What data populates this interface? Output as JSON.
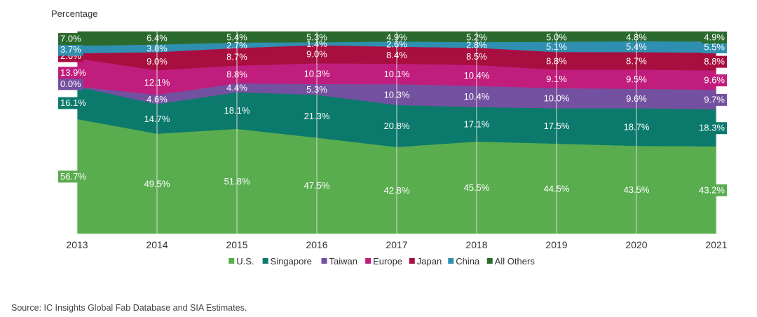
{
  "chart_data": {
    "type": "area",
    "stacked": true,
    "percent": true,
    "ylabel": "Percentage",
    "categories": [
      "2013",
      "2014",
      "2015",
      "2016",
      "2017",
      "2018",
      "2019",
      "2020",
      "2021"
    ],
    "series": [
      {
        "name": "U.S.",
        "color": "#5aad4f",
        "values": [
          56.7,
          49.5,
          51.8,
          47.5,
          42.8,
          45.5,
          44.5,
          43.5,
          43.2
        ],
        "labels": [
          "56.7%",
          "49.5%",
          "51.8%",
          "47.5%",
          "42.8%",
          "45.5%",
          "44.5%",
          "43.5%",
          "43.2%"
        ]
      },
      {
        "name": "Singapore",
        "color": "#0b7a6c",
        "values": [
          16.1,
          14.7,
          18.1,
          21.3,
          20.8,
          17.1,
          17.5,
          18.7,
          18.3
        ],
        "labels": [
          "16.1%",
          "14.7%",
          "18.1%",
          "21.3%",
          "20.8%",
          "17.1%",
          "17.5%",
          "18.7%",
          "18.3%"
        ]
      },
      {
        "name": "Taiwan",
        "color": "#7450a0",
        "values": [
          0.0,
          4.6,
          4.4,
          5.3,
          10.3,
          10.4,
          10.0,
          9.6,
          9.7
        ],
        "labels": [
          "0.0%",
          "4.6%",
          "4.4%",
          "5.3%",
          "10.3%",
          "10.4%",
          "10.0%",
          "9.6%",
          "9.7%"
        ]
      },
      {
        "name": "Europe",
        "color": "#c11d7d",
        "values": [
          13.9,
          12.1,
          8.8,
          10.3,
          10.1,
          10.4,
          9.1,
          9.5,
          9.6
        ],
        "labels": [
          "13.9%",
          "12.1%",
          "8.8%",
          "10.3%",
          "10.1%",
          "10.4%",
          "9.1%",
          "9.5%",
          "9.6%"
        ]
      },
      {
        "name": "Japan",
        "color": "#a80e3f",
        "values": [
          2.6,
          9.0,
          8.7,
          9.0,
          8.4,
          8.5,
          8.8,
          8.7,
          8.8
        ],
        "labels": [
          "2.6%",
          "9.0%",
          "8.7%",
          "9.0%",
          "8.4%",
          "8.5%",
          "8.8%",
          "8.7%",
          "8.8%"
        ]
      },
      {
        "name": "China",
        "color": "#2f8fb0",
        "values": [
          3.7,
          3.8,
          2.7,
          1.4,
          2.6,
          2.8,
          5.1,
          5.4,
          5.5
        ],
        "labels": [
          "3.7%",
          "3.8%",
          "2.7%",
          "1.4%",
          "2.6%",
          "2.8%",
          "5.1%",
          "5.4%",
          "5.5%"
        ]
      },
      {
        "name": "All Others",
        "color": "#2b6a2e",
        "values": [
          7.0,
          6.4,
          5.4,
          5.3,
          4.9,
          5.2,
          5.0,
          4.8,
          4.9
        ],
        "labels": [
          "7.0%",
          "6.4%",
          "5.4%",
          "5.3%",
          "4.9%",
          "5.2%",
          "5.0%",
          "4.8%",
          "4.9%"
        ]
      }
    ],
    "legend_position": "bottom-center",
    "source": "Source: IC Insights Global Fab Database and SIA Estimates."
  }
}
